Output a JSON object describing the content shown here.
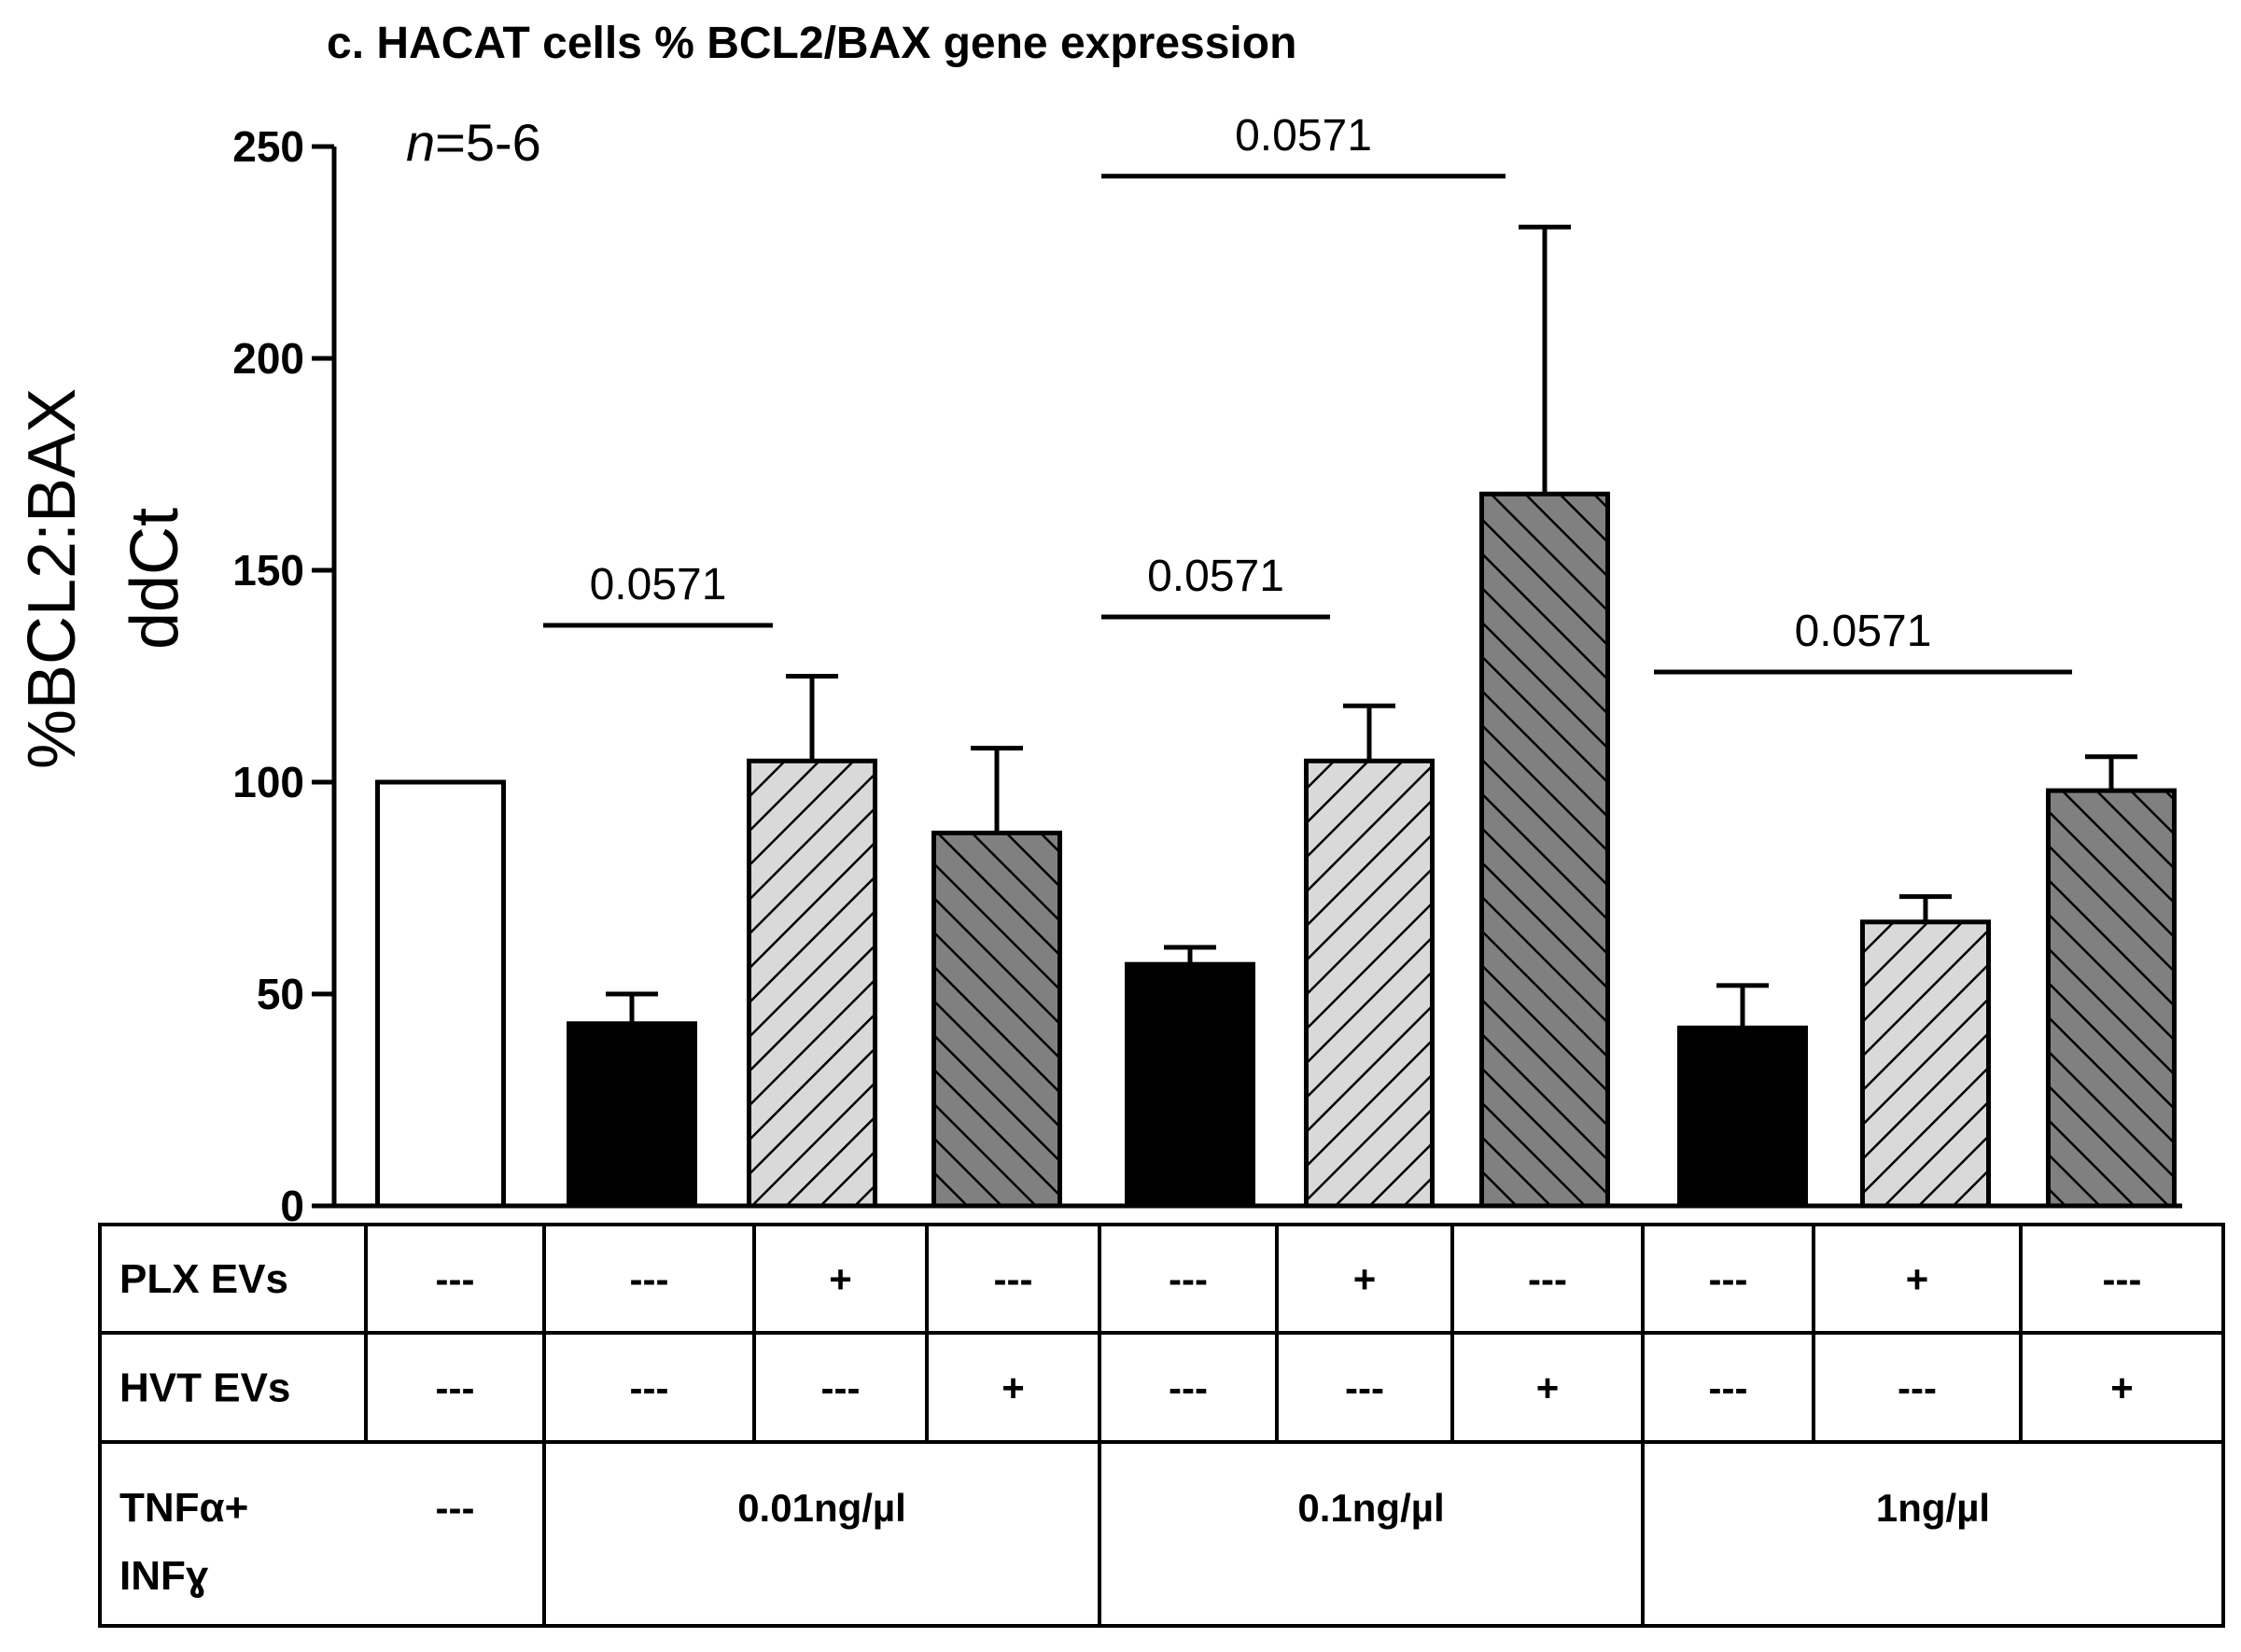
{
  "chart_data": {
    "type": "bar",
    "title": "c. HACAT cells % BCL2/BAX gene expression",
    "ylabel_line1": "%BCL2:BAX",
    "ylabel_line2": "ddCt",
    "ylim": [
      0,
      250
    ],
    "yticks": [
      0,
      50,
      100,
      150,
      200,
      250
    ],
    "annotation_n_italic": "n",
    "annotation_n_rest": "=5-6",
    "values": [
      100,
      43,
      105,
      88,
      57,
      105,
      168,
      42,
      67,
      98
    ],
    "errors": [
      0,
      7,
      20,
      20,
      4,
      13,
      63,
      10,
      6,
      8
    ],
    "bar_styles": [
      "white",
      "black",
      "light-hatch",
      "dark-hatch",
      "black",
      "light-hatch",
      "dark-hatch",
      "black",
      "light-hatch",
      "dark-hatch"
    ],
    "colors": {
      "black": "#000000",
      "light": "#d9d9d9",
      "dark": "#808080",
      "white": "#ffffff"
    },
    "significance": [
      {
        "from": 1,
        "to": 2,
        "label": "0.0571",
        "y": 137
      },
      {
        "from": 4,
        "to": 5,
        "label": "0.0571",
        "y": 139
      },
      {
        "from": 4,
        "to": 6,
        "label": "0.0571",
        "y": 243
      },
      {
        "from": 7,
        "to": 9,
        "label": "0.0571",
        "y": 126
      }
    ]
  },
  "table": {
    "rows": [
      {
        "label": "PLX EVs",
        "cells": [
          "---",
          "---",
          "+",
          "---",
          "---",
          "+",
          "---",
          "---",
          "+",
          "---"
        ]
      },
      {
        "label": "HVT EVs",
        "cells": [
          "---",
          "---",
          "---",
          "+",
          "---",
          "---",
          "+",
          "---",
          "---",
          "+"
        ]
      }
    ],
    "treatment": {
      "label_line1": "TNFα+",
      "label_line2": "INFɣ",
      "cells": [
        "---",
        "0.01ng/µl",
        "0.1ng/µl",
        "1ng/µl"
      ]
    }
  }
}
